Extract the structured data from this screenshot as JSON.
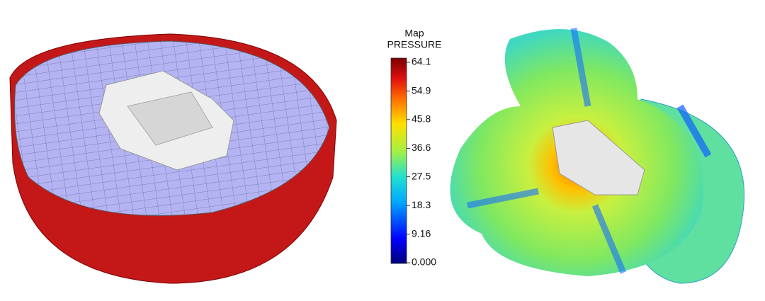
{
  "colorbar": {
    "title": "Map",
    "subtitle": "PRESSURE",
    "range": [
      0,
      64.1
    ],
    "ticks": [
      64.1,
      54.9,
      45.8,
      36.6,
      27.5,
      18.3,
      9.16,
      {
        "value": 0,
        "label": "0.000"
      }
    ]
  }
}
